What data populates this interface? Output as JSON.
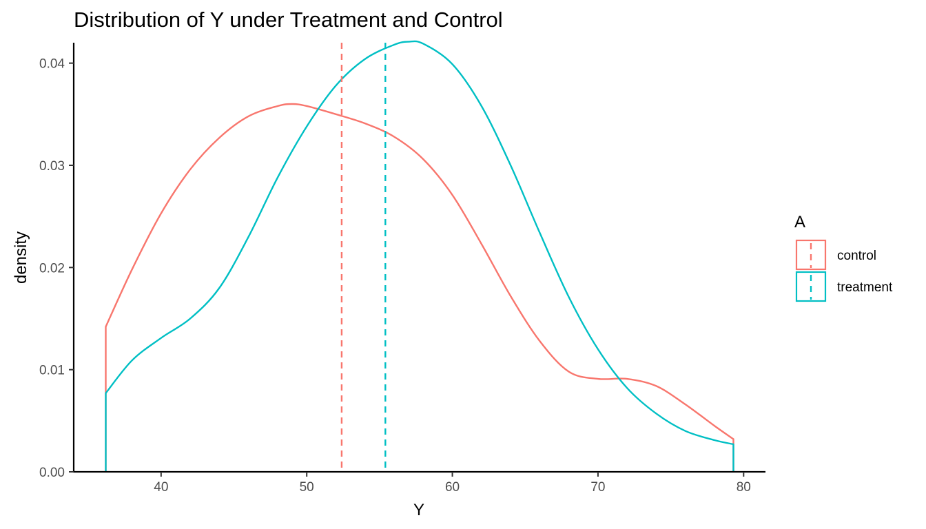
{
  "chart_data": {
    "type": "line",
    "title": "Distribution of Y under Treatment and Control",
    "xlabel": "Y",
    "ylabel": "density",
    "xlim": [
      34,
      81.5
    ],
    "ylim": [
      0,
      0.042
    ],
    "x_ticks": [
      40,
      50,
      60,
      70,
      80
    ],
    "x_tick_labels": [
      "40",
      "50",
      "60",
      "70",
      "80"
    ],
    "y_ticks": [
      0,
      0.01,
      0.02,
      0.03,
      0.04
    ],
    "y_tick_labels": [
      "0.00",
      "0.01",
      "0.02",
      "0.03",
      "0.04"
    ],
    "grid": false,
    "legend": {
      "title": "A",
      "position": "right",
      "entries": [
        "control",
        "treatment"
      ]
    },
    "series": [
      {
        "name": "control",
        "color": "#F8766D",
        "mean": 52.4,
        "points": [
          [
            36.2,
            0
          ],
          [
            36.2,
            0.0142
          ],
          [
            38,
            0.0198
          ],
          [
            40,
            0.0253
          ],
          [
            42,
            0.0296
          ],
          [
            44,
            0.0327
          ],
          [
            46,
            0.0348
          ],
          [
            48,
            0.0358
          ],
          [
            49,
            0.036
          ],
          [
            50,
            0.0358
          ],
          [
            52,
            0.035
          ],
          [
            54,
            0.0341
          ],
          [
            56,
            0.0328
          ],
          [
            58,
            0.0306
          ],
          [
            60,
            0.0271
          ],
          [
            62,
            0.0223
          ],
          [
            64,
            0.0172
          ],
          [
            66,
            0.0128
          ],
          [
            68,
            0.0098
          ],
          [
            70,
            0.0091
          ],
          [
            72,
            0.0091
          ],
          [
            74,
            0.0084
          ],
          [
            76,
            0.0066
          ],
          [
            78,
            0.0045
          ],
          [
            79.3,
            0.0032
          ],
          [
            79.3,
            0
          ]
        ]
      },
      {
        "name": "treatment",
        "color": "#00BFC4",
        "mean": 55.4,
        "points": [
          [
            36.2,
            0
          ],
          [
            36.2,
            0.0077
          ],
          [
            38,
            0.0109
          ],
          [
            40,
            0.0131
          ],
          [
            42,
            0.015
          ],
          [
            44,
            0.018
          ],
          [
            46,
            0.023
          ],
          [
            48,
            0.0288
          ],
          [
            50,
            0.0338
          ],
          [
            52,
            0.0378
          ],
          [
            54,
            0.0404
          ],
          [
            56,
            0.0418
          ],
          [
            57,
            0.0421
          ],
          [
            58,
            0.0419
          ],
          [
            60,
            0.0399
          ],
          [
            62,
            0.0358
          ],
          [
            64,
            0.03
          ],
          [
            66,
            0.0234
          ],
          [
            68,
            0.0171
          ],
          [
            70,
            0.012
          ],
          [
            72,
            0.0082
          ],
          [
            74,
            0.0057
          ],
          [
            76,
            0.004
          ],
          [
            78,
            0.0031
          ],
          [
            79.3,
            0.0027
          ],
          [
            79.3,
            0
          ]
        ]
      }
    ]
  }
}
